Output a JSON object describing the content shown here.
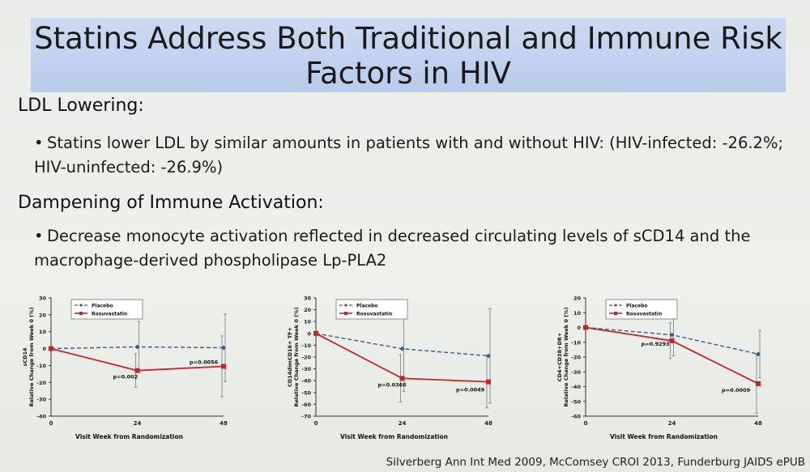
{
  "title": "Statins Address Both Traditional and Immune Risk Factors in HIV",
  "sections": [
    {
      "heading": "LDL Lowering:",
      "bullet": "Statins lower LDL by similar amounts in patients with and without HIV:  (HIV-infected: -26.2%; HIV-uninfected: -26.9%)"
    },
    {
      "heading": "Dampening of Immune Activation:",
      "bullet": "Decrease monocyte activation reflected in decreased circulating levels of sCD14 and the macrophage-derived phospholipase Lp-PLA2"
    }
  ],
  "citation": "Silverberg Ann Int Med 2009, McComsey CROI 2013, Funderburg JAIDS ePUB",
  "colors": {
    "placebo": "#3d5a8c",
    "rosuvastatin": "#c0262a"
  },
  "chart_data": [
    {
      "type": "line",
      "ylabel": "sCD14 Relative Change from Week 0 (%)",
      "xlabel": "Visit Week from Randomization",
      "x": [
        0,
        24,
        48
      ],
      "ylim": [
        -40,
        30
      ],
      "yticks": [
        30,
        20,
        10,
        0,
        -10,
        -20,
        -30,
        -40
      ],
      "series": [
        {
          "name": "Placebo",
          "values": [
            0,
            1,
            0.5
          ],
          "err": [
            0,
            15,
            20
          ]
        },
        {
          "name": "Rosuvastatin",
          "values": [
            0,
            -13,
            -10.5
          ],
          "err": [
            0,
            10,
            18
          ]
        }
      ],
      "annotations": [
        "p=0.002",
        "p=0.0056"
      ]
    },
    {
      "type": "line",
      "ylabel": "CD14dimCD16+ TF+ Relative Change from Week 0 (%)",
      "xlabel": "Visit Week from Randomization",
      "x": [
        0,
        24,
        48
      ],
      "ylim": [
        -70,
        30
      ],
      "yticks": [
        30,
        20,
        10,
        0,
        -10,
        -20,
        -30,
        -40,
        -50,
        -60,
        -70
      ],
      "series": [
        {
          "name": "Placebo",
          "values": [
            0,
            -13,
            -19
          ],
          "err": [
            0,
            36,
            40
          ]
        },
        {
          "name": "Rosuvastatin",
          "values": [
            0,
            -38,
            -41
          ],
          "err": [
            0,
            20,
            22
          ]
        }
      ],
      "annotations": [
        "p=0.0366",
        "p=0.0049"
      ]
    },
    {
      "type": "line",
      "ylabel": "CD4+CD38+DR+ Relative Change from Week 0 (%)",
      "xlabel": "Visit Week from Randomization",
      "x": [
        0,
        24,
        48
      ],
      "ylim": [
        -60,
        20
      ],
      "yticks": [
        20,
        10,
        0,
        -10,
        -20,
        -30,
        -40,
        -50,
        -60
      ],
      "series": [
        {
          "name": "Placebo",
          "values": [
            0,
            -5,
            -18
          ],
          "err": [
            0,
            14,
            16
          ]
        },
        {
          "name": "Rosuvastatin",
          "values": [
            0,
            -9,
            -38
          ],
          "err": [
            0,
            12,
            20
          ]
        }
      ],
      "annotations": [
        "p=0.9293",
        "p=0.0009"
      ]
    }
  ]
}
